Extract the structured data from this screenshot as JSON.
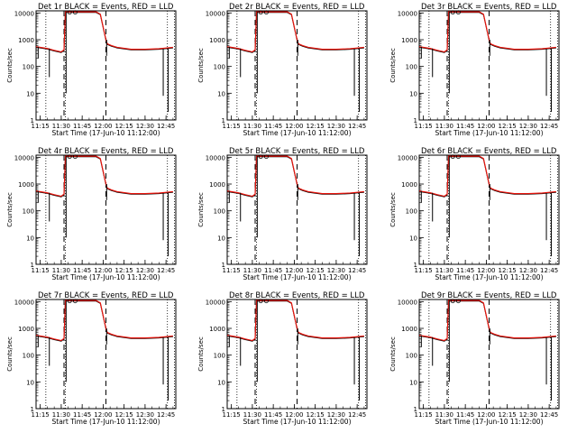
{
  "chart_data": {
    "type": "line",
    "layout": "3x3 grid",
    "x_tick_labels": [
      "11:15",
      "11:30",
      "11:45",
      "12:00",
      "12:15",
      "12:30",
      "12:45"
    ],
    "x_ticks_minutes_after_11_00": [
      15,
      30,
      45,
      60,
      75,
      90,
      105
    ],
    "xlabel": "Start Time (17-Jun-10 11:12:00)",
    "ylabel": "Counts/sec",
    "y_scale": "log",
    "ylim": [
      1,
      12000
    ],
    "y_tick_labels": [
      "1",
      "10",
      "100",
      "1000",
      "10000"
    ],
    "vertical_markers_minutes": {
      "dotted": [
        19,
        33,
        106,
        111
      ],
      "dashed": [
        32,
        62
      ]
    },
    "series_styles": [
      {
        "name": "Events",
        "color": "#000000"
      },
      {
        "name": "LLD",
        "color": "#e8140c"
      }
    ],
    "panels": [
      {
        "title": "Det 1r BLACK = Events, RED = LLD"
      },
      {
        "title": "Det 2r BLACK = Events, RED = LLD"
      },
      {
        "title": "Det 3r BLACK = Events, RED = LLD"
      },
      {
        "title": "Det 4r BLACK = Events, RED = LLD"
      },
      {
        "title": "Det 5r BLACK = Events, RED = LLD"
      },
      {
        "title": "Det 6r BLACK = Events, RED = LLD"
      },
      {
        "title": "Det 7r BLACK = Events, RED = LLD"
      },
      {
        "title": "Det 8r BLACK = Events, RED = LLD"
      },
      {
        "title": "Det 9r BLACK = Events, RED = LLD"
      }
    ],
    "profile": {
      "x": [
        12,
        20,
        25,
        30,
        32,
        33,
        36,
        40,
        45,
        50,
        55,
        58,
        60,
        62,
        63,
        66,
        70,
        80,
        90,
        100,
        110
      ],
      "y": [
        550,
        470,
        400,
        350,
        420,
        11000,
        11000,
        11000,
        11000,
        11000,
        11000,
        9000,
        3000,
        1000,
        700,
        600,
        520,
        440,
        440,
        460,
        520
      ]
    },
    "events_dips": [
      {
        "x": 13.5,
        "y": 200
      },
      {
        "x": 21.5,
        "y": 40
      },
      {
        "x": 33.5,
        "y": 10
      },
      {
        "x": 62.5,
        "y": 250
      },
      {
        "x": 103,
        "y": 8
      },
      {
        "x": 106.5,
        "y": 2
      }
    ]
  }
}
